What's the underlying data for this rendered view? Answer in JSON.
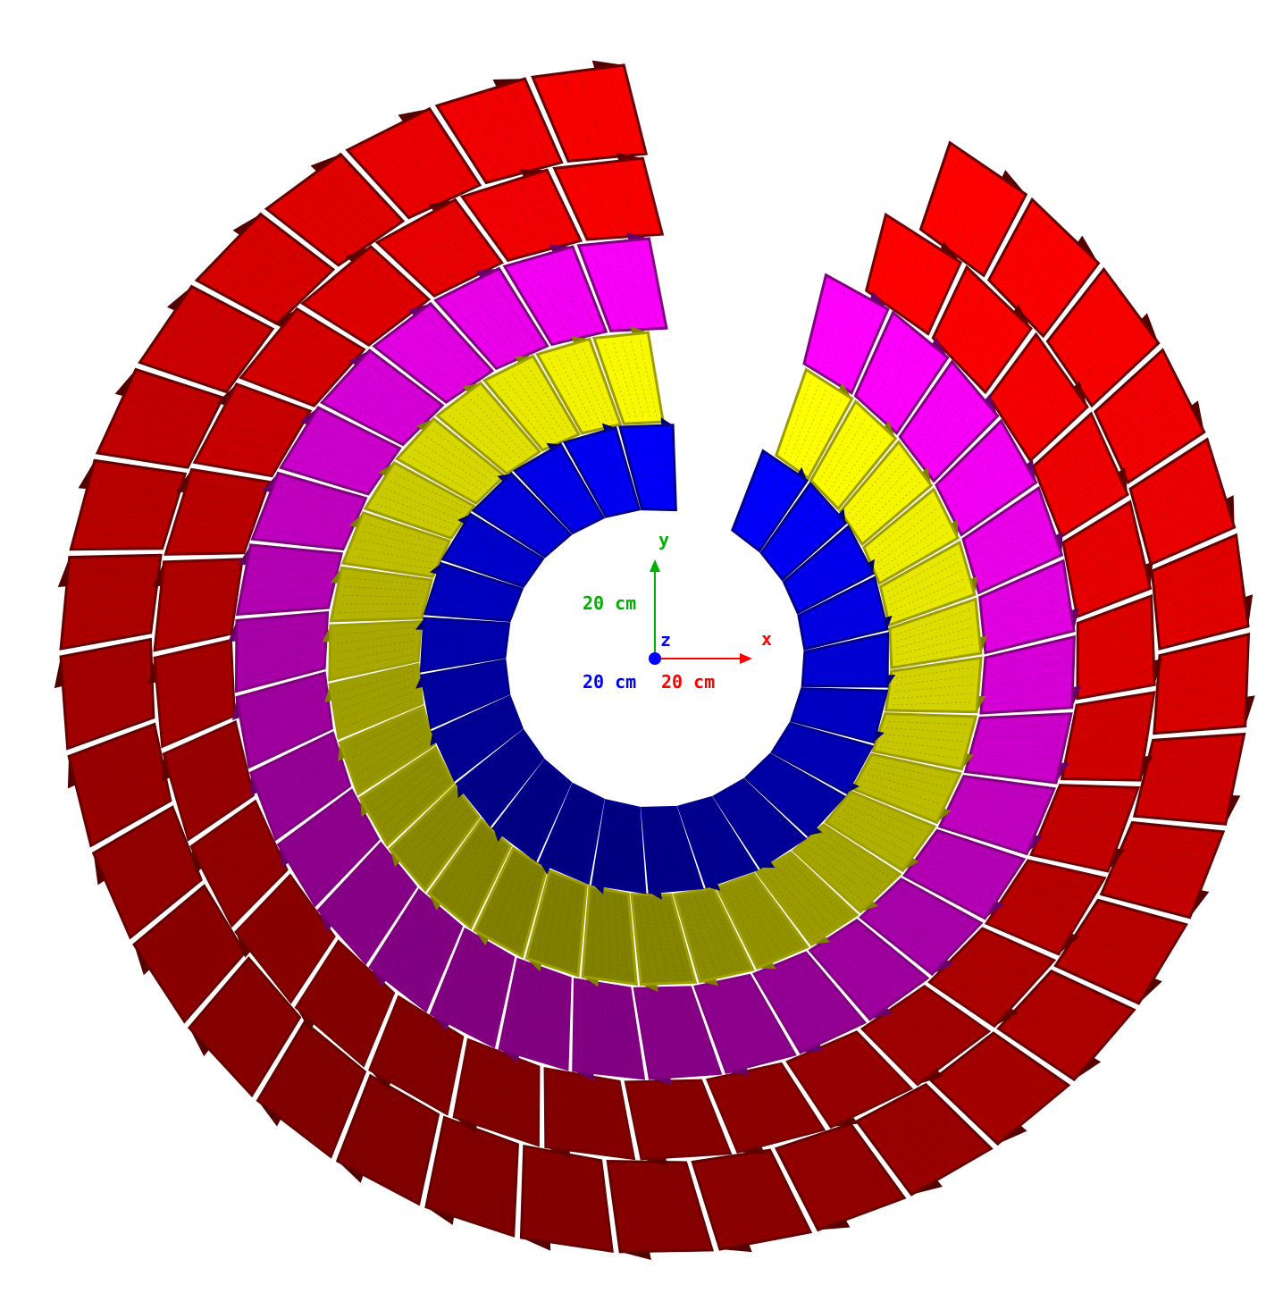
{
  "colors": {
    "background": "#ffffff",
    "ring_blue": "#0000ff",
    "ring_yellow": "#ffff00",
    "ring_magenta": "#ff00ff",
    "ring_red": "#ff0000",
    "axis_x": "#ff0000",
    "axis_y": "#00b000",
    "axis_z": "#0000ff"
  },
  "axes": {
    "x_label": "x",
    "y_label": "y",
    "z_label": "z",
    "x_scale": "20 cm",
    "y_scale": "20 cm",
    "z_scale": "20 cm"
  },
  "rings": [
    {
      "name": "blue-ring",
      "color_key": "ring_blue",
      "segments": 24
    },
    {
      "name": "yellow-ring",
      "color_key": "ring_yellow",
      "segments": 32
    },
    {
      "name": "magenta-ring",
      "color_key": "ring_magenta",
      "segments": 32
    },
    {
      "name": "inner-red-ring",
      "color_key": "ring_red",
      "segments": 30
    },
    {
      "name": "outer-red-ring",
      "color_key": "ring_red",
      "segments": 34
    }
  ]
}
